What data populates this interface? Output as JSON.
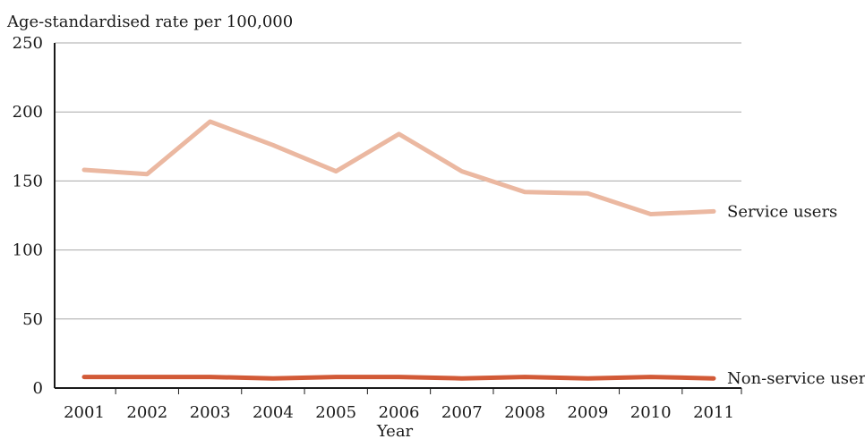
{
  "chart_data": {
    "type": "line",
    "title": "",
    "ylabel": "Age-standardised rate per 100,000",
    "xlabel": "Year",
    "ylim": [
      0,
      250
    ],
    "yticks": [
      0,
      50,
      100,
      150,
      200,
      250
    ],
    "grid": true,
    "categories": [
      "2001",
      "2002",
      "2003",
      "2004",
      "2005",
      "2006",
      "2007",
      "2008",
      "2009",
      "2010",
      "2011"
    ],
    "series": [
      {
        "name": "Service users",
        "color": "#ebb8a1",
        "values": [
          158,
          155,
          193,
          176,
          157,
          184,
          157,
          142,
          141,
          126,
          128
        ]
      },
      {
        "name": "Non-service users",
        "color": "#d25a37",
        "values": [
          8,
          8,
          8,
          7,
          8,
          8,
          7,
          8,
          7,
          8,
          7
        ]
      }
    ]
  }
}
